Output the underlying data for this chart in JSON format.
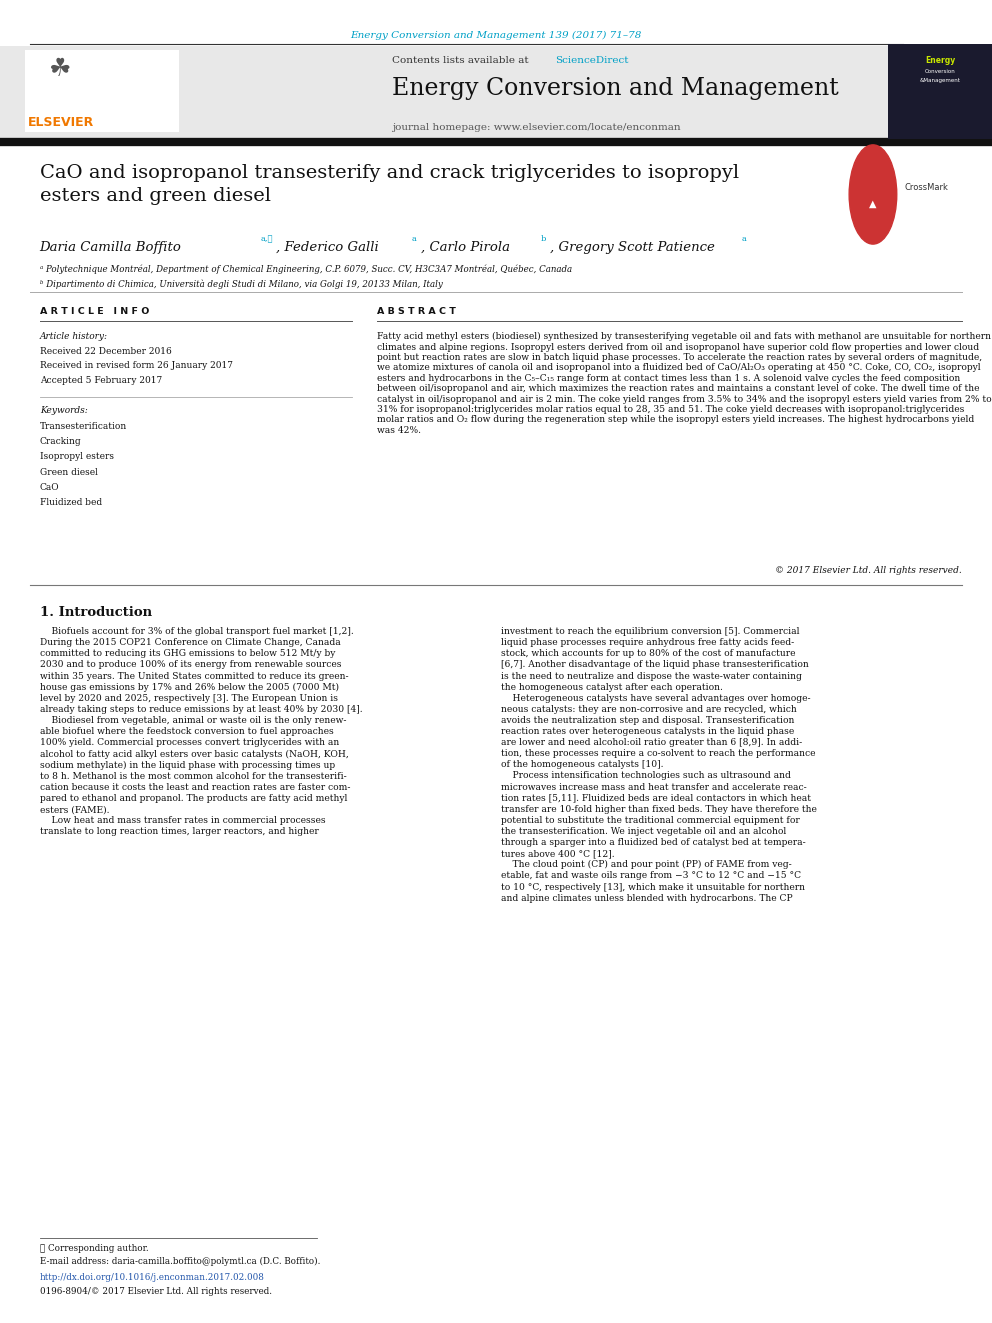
{
  "page_width": 9.92,
  "page_height": 13.23,
  "bg_color": "#ffffff",
  "header_journal_ref": "Energy Conversion and Management 139 (2017) 71–78",
  "header_journal_ref_color": "#00a0c6",
  "journal_banner_bg": "#e8e8e8",
  "journal_name": "Energy Conversion and Management",
  "journal_homepage": "journal homepage: www.elsevier.com/locate/enconman",
  "contents_text": "Contents lists available at ",
  "sciencedirect_text": "ScienceDirect",
  "sciencedirect_color": "#00a0c6",
  "elsevier_color": "#f07800",
  "article_title": "CaO and isopropanol transesterify and crack triglycerides to isopropyl\nesters and green diesel",
  "affil_a": "ᵃ Polytechnique Montréal, Department of Chemical Engineering, C.P. 6079, Succ. CV, H3C3A7 Montréal, Québec, Canada",
  "affil_b": "ᵇ Dipartimento di Chimica, Università degli Studi di Milano, via Golgi 19, 20133 Milan, Italy",
  "article_history_label": "Article history:",
  "received_1": "Received 22 December 2016",
  "received_2": "Received in revised form 26 January 2017",
  "accepted": "Accepted 5 February 2017",
  "keywords_label": "Keywords:",
  "keywords": [
    "Transesterification",
    "Cracking",
    "Isopropyl esters",
    "Green diesel",
    "CaO",
    "Fluidized bed"
  ],
  "abstract_text": "Fatty acid methyl esters (biodiesel) synthesized by transesterifying vegetable oil and fats with methanol are unsuitable for northern climates and alpine regions. Isopropyl esters derived from oil and isopropanol have superior cold flow properties and lower cloud point but reaction rates are slow in batch liquid phase processes. To accelerate the reaction rates by several orders of magnitude, we atomize mixtures of canola oil and isopropanol into a fluidized bed of CaO/Al₂O₃ operating at 450 °C. Coke, CO, CO₂, isopropyl esters and hydrocarbons in the C₅–C₁₅ range form at contact times less than 1 s. A solenoid valve cycles the feed composition between oil/isopropanol and air, which maximizes the reaction rates and maintains a constant level of coke. The dwell time of the catalyst in oil/isopropanol and air is 2 min. The coke yield ranges from 3.5% to 34% and the isopropyl esters yield varies from 2% to 31% for isopropanol:triglycerides molar ratios equal to 28, 35 and 51. The coke yield decreases with isopropanol:triglycerides molar ratios and O₂ flow during the regeneration step while the isopropyl esters yield increases. The highest hydrocarbons yield was 42%.",
  "copyright": "© 2017 Elsevier Ltd. All rights reserved.",
  "intro_heading": "1. Introduction",
  "intro_col1": "    Biofuels account for 3% of the global transport fuel market [1,2].\nDuring the 2015 COP21 Conference on Climate Change, Canada\ncommitted to reducing its GHG emissions to below 512 Mt/y by\n2030 and to produce 100% of its energy from renewable sources\nwithin 35 years. The United States committed to reduce its green-\nhouse gas emissions by 17% and 26% below the 2005 (7000 Mt)\nlevel by 2020 and 2025, respectively [3]. The European Union is\nalready taking steps to reduce emissions by at least 40% by 2030 [4].\n    Biodiesel from vegetable, animal or waste oil is the only renew-\nable biofuel where the feedstock conversion to fuel approaches\n100% yield. Commercial processes convert triglycerides with an\nalcohol to fatty acid alkyl esters over basic catalysts (NaOH, KOH,\nsodium methylate) in the liquid phase with processing times up\nto 8 h. Methanol is the most common alcohol for the transesterifi-\ncation because it costs the least and reaction rates are faster com-\npared to ethanol and propanol. The products are fatty acid methyl\nesters (FAME).\n    Low heat and mass transfer rates in commercial processes\ntranslate to long reaction times, larger reactors, and higher",
  "intro_col2": "investment to reach the equilibrium conversion [5]. Commercial\nliquid phase processes require anhydrous free fatty acids feed-\nstock, which accounts for up to 80% of the cost of manufacture\n[6,7]. Another disadvantage of the liquid phase transesterification\nis the need to neutralize and dispose the waste-water containing\nthe homogeneous catalyst after each operation.\n    Heterogeneous catalysts have several advantages over homoge-\nneous catalysts: they are non-corrosive and are recycled, which\navoids the neutralization step and disposal. Transesterification\nreaction rates over heterogeneous catalysts in the liquid phase\nare lower and need alcohol:oil ratio greater than 6 [8,9]. In addi-\ntion, these processes require a co-solvent to reach the performance\nof the homogeneous catalysts [10].\n    Process intensification technologies such as ultrasound and\nmicrowaves increase mass and heat transfer and accelerate reac-\ntion rates [5,11]. Fluidized beds are ideal contactors in which heat\ntransfer are 10-fold higher than fixed beds. They have therefore the\npotential to substitute the traditional commercial equipment for\nthe transesterification. We inject vegetable oil and an alcohol\nthrough a sparger into a fluidized bed of catalyst bed at tempera-\ntures above 400 °C [12].\n    The cloud point (CP) and pour point (PP) of FAME from veg-\netable, fat and waste oils range from −3 °C to 12 °C and −15 °C\nto 10 °C, respectively [13], which make it unsuitable for northern\nand alpine climates unless blended with hydrocarbons. The CP",
  "footnote_star": "⋆ Corresponding author.",
  "footnote_email": "E-mail address: daria-camilla.boffito@polymtl.ca (D.C. Boffito).",
  "footnote_doi": "http://dx.doi.org/10.1016/j.enconman.2017.02.008",
  "footnote_issn": "0196-8904/© 2017 Elsevier Ltd. All rights reserved."
}
